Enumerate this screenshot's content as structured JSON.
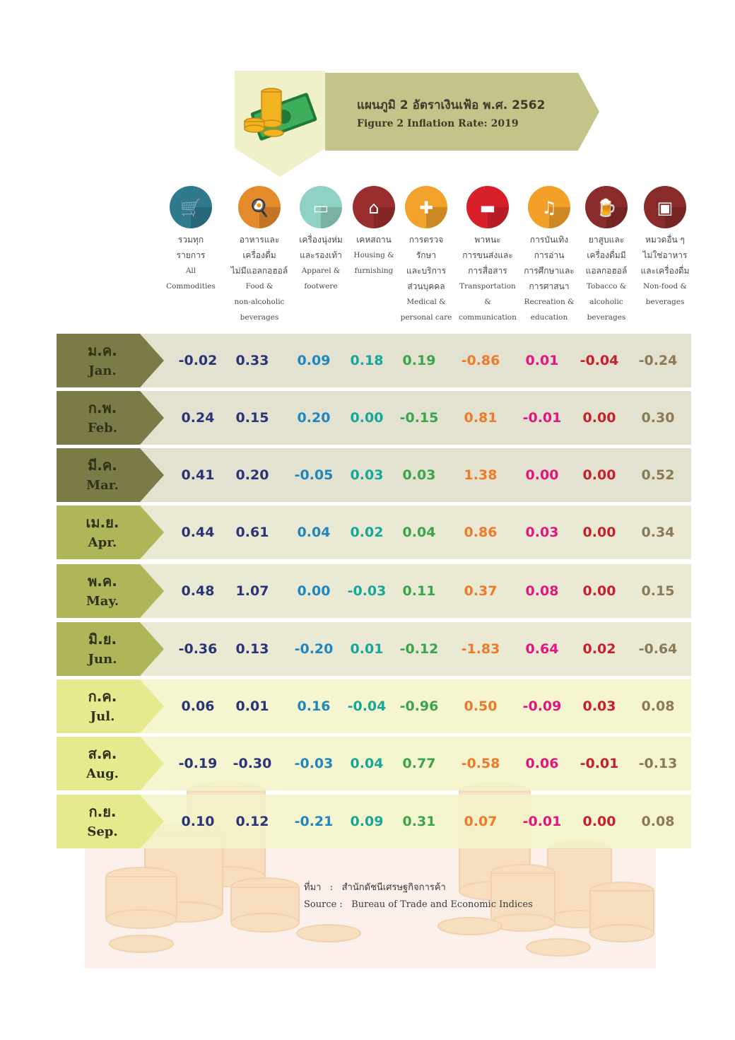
{
  "header": {
    "title_th": "แผนภูมิ 2 อัตราเงินเฟ้อ พ.ศ. 2562",
    "title_en": "Figure  2  Inflation Rate: 2019"
  },
  "colors": {
    "banner": "#c4c48a",
    "panel": "#f1f1c9",
    "series": [
      "#2a3478",
      "#2a3478",
      "#1f86c0",
      "#16a79a",
      "#3aa54a",
      "#ee7a2a",
      "#e2167e",
      "#c8202b",
      "#8b7a55"
    ]
  },
  "columns": [
    {
      "icon": "shopping-cart-icon",
      "th": "รวมทุก\nรายการ",
      "en": "All\nCommodities",
      "color": "#2a3478"
    },
    {
      "icon": "plate-icon",
      "th": "อาหารและ\nเครื่องดื่ม\nไม่มีแอลกอฮอล์",
      "en": "Food &\nnon-alcoholic\nbeverages",
      "color": "#2a3478"
    },
    {
      "icon": "shorts-icon",
      "th": "เครื่องนุ่งห่ม\nและรองเท้า",
      "en": "Apparel &\nfootwere",
      "color": "#1f86c0"
    },
    {
      "icon": "house-icon",
      "th": "เคหสถาน",
      "en": "Housing &\nfurnishing",
      "color": "#16a79a"
    },
    {
      "icon": "medical-heart-icon",
      "th": "การตรวจ\nรักษา\nและบริการ\nส่วนบุคคล",
      "en": "Medical &\npersonal care",
      "color": "#3aa54a"
    },
    {
      "icon": "bus-icon",
      "th": "พาหนะ\nการขนส่งและ\nการสื่อสาร",
      "en": "Transportation &\ncommunication",
      "color": "#ee7a2a"
    },
    {
      "icon": "music-note-icon",
      "th": "การบันเทิง\nการอ่าน\nการศึกษาและ\nการศาสนา",
      "en": "Recreation &\neducation",
      "color": "#e2167e"
    },
    {
      "icon": "beer-icon",
      "th": "ยาสูบและ\nเครื่องดื่มมี\nแอลกอฮอล์",
      "en": "Tobacco &\nalcoholic\nbeverages",
      "color": "#c8202b"
    },
    {
      "icon": "gift-icon",
      "th": "หมวดอื่น ๆ\nไม่ใช่อาหาร\nและเครื่องดื่ม",
      "en": "Non-food &\nbeverages",
      "color": "#8b7a55"
    }
  ],
  "chart_data": {
    "type": "table",
    "title": "แผนภูมิ 2 อัตราเงินเฟ้อ พ.ศ. 2562 / Figure 2 Inflation Rate: 2019",
    "categories": [
      "All Commodities",
      "Food & non-alcoholic beverages",
      "Apparel & footwere",
      "Housing & furnishing",
      "Medical & personal care",
      "Transportation & communication",
      "Recreation & education",
      "Tobacco & alcoholic beverages",
      "Non-food & beverages"
    ],
    "rows": [
      {
        "th": "ม.ค.",
        "en": "Jan.",
        "values": [
          "-0.02",
          "0.33",
          "0.09",
          "0.18",
          "0.19",
          "-0.86",
          "0.01",
          "-0.04",
          "-0.24"
        ]
      },
      {
        "th": "ก.พ.",
        "en": "Feb.",
        "values": [
          "0.24",
          "0.15",
          "0.20",
          "0.00",
          "-0.15",
          "0.81",
          "-0.01",
          "0.00",
          "0.30"
        ]
      },
      {
        "th": "มี.ค.",
        "en": "Mar.",
        "values": [
          "0.41",
          "0.20",
          "-0.05",
          "0.03",
          "0.03",
          "1.38",
          "0.00",
          "0.00",
          "0.52"
        ]
      },
      {
        "th": "เม.ย.",
        "en": "Apr.",
        "values": [
          "0.44",
          "0.61",
          "0.04",
          "0.02",
          "0.04",
          "0.86",
          "0.03",
          "0.00",
          "0.34"
        ]
      },
      {
        "th": "พ.ค.",
        "en": "May.",
        "values": [
          "0.48",
          "1.07",
          "0.00",
          "-0.03",
          "0.11",
          "0.37",
          "0.08",
          "0.00",
          "0.15"
        ]
      },
      {
        "th": "มิ.ย.",
        "en": "Jun.",
        "values": [
          "-0.36",
          "0.13",
          "-0.20",
          "0.01",
          "-0.12",
          "-1.83",
          "0.64",
          "0.02",
          "-0.64"
        ]
      },
      {
        "th": "ก.ค.",
        "en": "Jul.",
        "values": [
          "0.06",
          "0.01",
          "0.16",
          "-0.04",
          "-0.96",
          "0.50",
          "-0.09",
          "0.03",
          "0.08"
        ]
      },
      {
        "th": "ส.ค.",
        "en": "Aug.",
        "values": [
          "-0.19",
          "-0.30",
          "-0.03",
          "0.04",
          "0.77",
          "-0.58",
          "0.06",
          "-0.01",
          "-0.13"
        ]
      },
      {
        "th": "ก.ย.",
        "en": "Sep.",
        "values": [
          "0.10",
          "0.12",
          "-0.21",
          "0.09",
          "0.31",
          "0.07",
          "-0.01",
          "0.00",
          "0.08"
        ]
      }
    ],
    "row_colors": [
      {
        "label": "#7b7b47",
        "band": "#dedcc8"
      },
      {
        "label": "#7b7b47",
        "band": "#dedcc8"
      },
      {
        "label": "#7b7b47",
        "band": "#dedcc8"
      },
      {
        "label": "#afb559",
        "band": "#e6e6cc"
      },
      {
        "label": "#afb559",
        "band": "#e6e6cc"
      },
      {
        "label": "#afb559",
        "band": "#e6e6cc"
      },
      {
        "label": "#e5ea8f",
        "band": "#f3f3c8"
      },
      {
        "label": "#e5ea8f",
        "band": "#f3f3c8"
      },
      {
        "label": "#e5ea8f",
        "band": "#f3f3c8"
      }
    ]
  },
  "source": {
    "th_label": "ที่มา",
    "th_text": "สำนักดัชนีเศรษฐกิจการค้า",
    "en_label": "Source",
    "en_text": "Bureau of Trade and Economic Indices"
  }
}
